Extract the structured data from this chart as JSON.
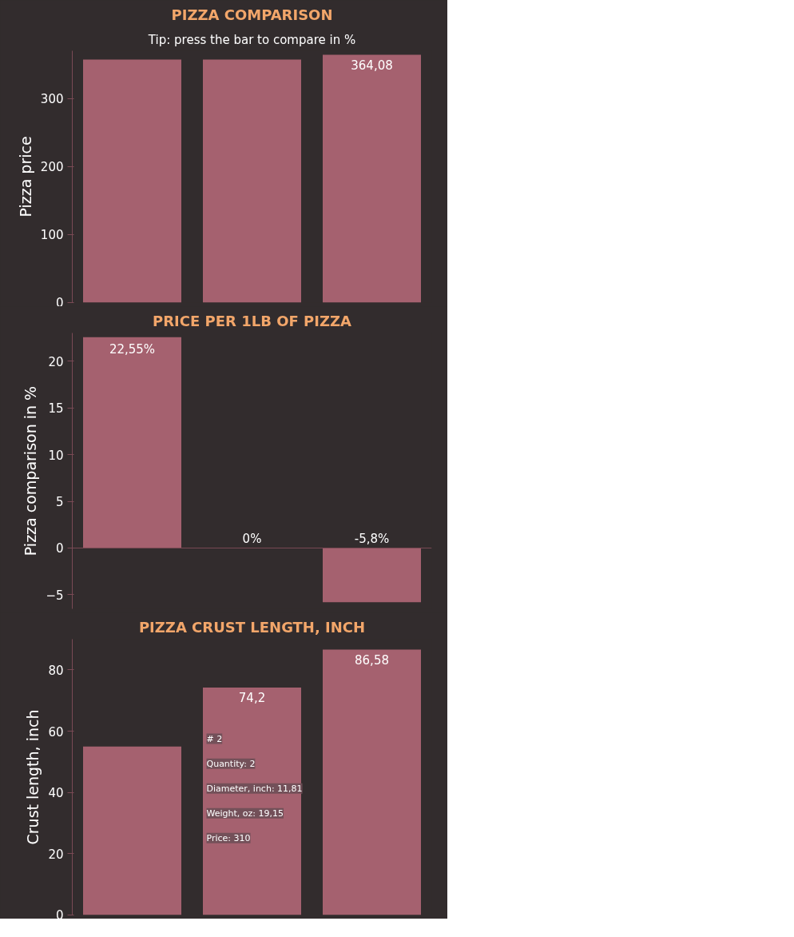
{
  "chart_data": [
    {
      "type": "bar",
      "title": "PIZZA COMPARISON",
      "subtitle": "Tip: press the bar to compare in %",
      "ylabel": "Pizza price",
      "categories": [
        null,
        null,
        null
      ],
      "series": [
        {
          "color": "#a5616f",
          "values": [
            357,
            357,
            364.08
          ]
        }
      ],
      "value_labels": [
        null,
        null,
        "364,08"
      ],
      "ylim": [
        0,
        370
      ],
      "yticks": [
        0,
        100,
        200,
        300
      ],
      "grid": false
    },
    {
      "type": "bar",
      "title": "PRICE PER 1LB OF PIZZA",
      "ylabel": "Pizza comparison in %",
      "categories": [
        null,
        null,
        null
      ],
      "series": [
        {
          "color": "#a5616f",
          "values": [
            22.55,
            0,
            -5.8
          ]
        }
      ],
      "value_labels": [
        "22,55%",
        "0%",
        "-5,8%"
      ],
      "ylim": [
        -6.5,
        23
      ],
      "yticks": [
        -5,
        0,
        5,
        10,
        15,
        20
      ],
      "grid": false,
      "ref_lines": [
        {
          "axis": "y",
          "value": 0,
          "color": "#7a4a55"
        }
      ]
    },
    {
      "type": "bar",
      "title": "PIZZA CRUST LENGTH, INCH",
      "ylabel": "Crust length, inch",
      "categories": [
        null,
        null,
        null
      ],
      "series": [
        {
          "color": "#a5616f",
          "values": [
            55,
            74.2,
            86.58
          ]
        }
      ],
      "value_labels": [
        null,
        "74,2",
        "86,58"
      ],
      "ylim": [
        0,
        90
      ],
      "yticks": [
        0,
        20,
        40,
        60,
        80
      ],
      "grid": false,
      "annotations": [
        "# 2",
        "Quantity: 2",
        "Diameter, inch: 11,81",
        "Weight, oz: 19,15",
        "Price: 310"
      ]
    }
  ]
}
